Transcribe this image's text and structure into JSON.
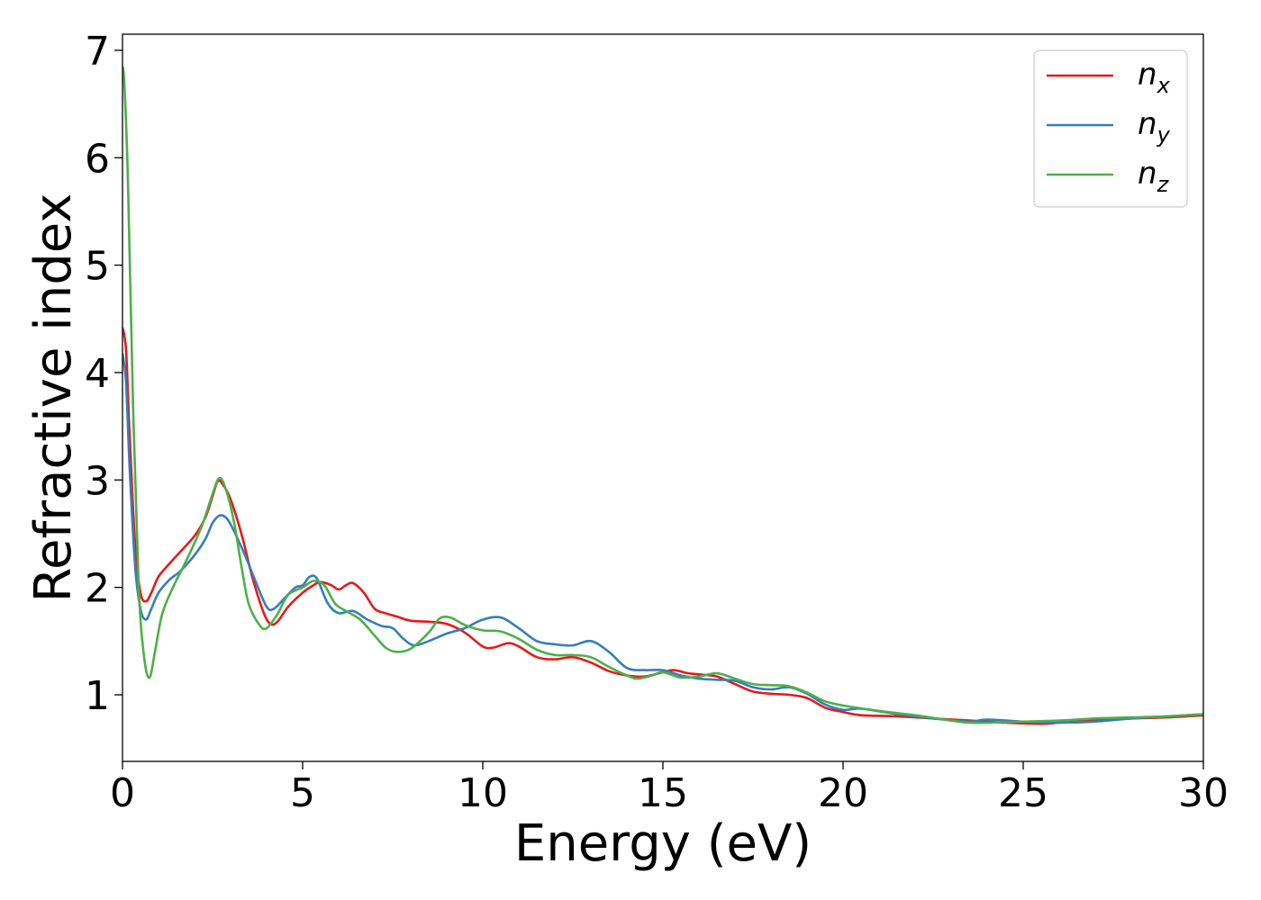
{
  "chart_data": {
    "type": "line",
    "title": "",
    "xlabel": "Energy (eV)",
    "ylabel": "Refractive index",
    "xlim": [
      0,
      30
    ],
    "ylim": [
      0.38,
      7.15
    ],
    "xticks": [
      "0",
      "5",
      "10",
      "15",
      "20",
      "25",
      "30"
    ],
    "yticks": [
      "1",
      "2",
      "3",
      "4",
      "5",
      "6",
      "7"
    ],
    "grid": false,
    "legend_position": "top-right",
    "series": [
      {
        "name": "n_x",
        "name_base": "n",
        "name_sub": "x",
        "color": "#e41a1c",
        "points": [
          [
            0,
            4.42
          ],
          [
            0.1,
            4.2
          ],
          [
            0.2,
            3.4
          ],
          [
            0.35,
            2.4
          ],
          [
            0.5,
            1.95
          ],
          [
            0.65,
            1.87
          ],
          [
            0.8,
            1.95
          ],
          [
            1.0,
            2.1
          ],
          [
            1.3,
            2.22
          ],
          [
            1.6,
            2.33
          ],
          [
            2.0,
            2.48
          ],
          [
            2.3,
            2.65
          ],
          [
            2.5,
            2.85
          ],
          [
            2.65,
            2.99
          ],
          [
            2.8,
            2.95
          ],
          [
            3.0,
            2.82
          ],
          [
            3.3,
            2.5
          ],
          [
            3.6,
            2.1
          ],
          [
            3.9,
            1.78
          ],
          [
            4.1,
            1.66
          ],
          [
            4.3,
            1.68
          ],
          [
            4.6,
            1.82
          ],
          [
            5.0,
            1.95
          ],
          [
            5.3,
            2.02
          ],
          [
            5.5,
            2.05
          ],
          [
            5.8,
            2.02
          ],
          [
            6.0,
            1.98
          ],
          [
            6.2,
            2.02
          ],
          [
            6.4,
            2.04
          ],
          [
            6.7,
            1.95
          ],
          [
            7.0,
            1.8
          ],
          [
            7.3,
            1.76
          ],
          [
            7.6,
            1.73
          ],
          [
            8.0,
            1.69
          ],
          [
            8.5,
            1.68
          ],
          [
            9.0,
            1.66
          ],
          [
            9.5,
            1.58
          ],
          [
            10.0,
            1.45
          ],
          [
            10.3,
            1.44
          ],
          [
            10.7,
            1.48
          ],
          [
            11.0,
            1.45
          ],
          [
            11.5,
            1.35
          ],
          [
            12.0,
            1.33
          ],
          [
            12.5,
            1.35
          ],
          [
            13.0,
            1.3
          ],
          [
            13.5,
            1.22
          ],
          [
            14.0,
            1.18
          ],
          [
            14.5,
            1.17
          ],
          [
            15.0,
            1.21
          ],
          [
            15.3,
            1.23
          ],
          [
            15.7,
            1.2
          ],
          [
            16.0,
            1.19
          ],
          [
            16.5,
            1.17
          ],
          [
            17.0,
            1.1
          ],
          [
            17.5,
            1.03
          ],
          [
            18.0,
            1.01
          ],
          [
            18.5,
            1.0
          ],
          [
            19.0,
            0.97
          ],
          [
            19.5,
            0.88
          ],
          [
            20.0,
            0.84
          ],
          [
            20.5,
            0.81
          ],
          [
            21.5,
            0.8
          ],
          [
            22.5,
            0.78
          ],
          [
            23.5,
            0.76
          ],
          [
            24.5,
            0.74
          ],
          [
            25.5,
            0.73
          ],
          [
            26.0,
            0.74
          ],
          [
            27.0,
            0.76
          ],
          [
            28.0,
            0.78
          ],
          [
            29.0,
            0.79
          ],
          [
            30.0,
            0.81
          ]
        ]
      },
      {
        "name": "n_y",
        "name_base": "n",
        "name_sub": "y",
        "color": "#377eb8",
        "points": [
          [
            0,
            4.18
          ],
          [
            0.1,
            3.9
          ],
          [
            0.2,
            3.1
          ],
          [
            0.35,
            2.2
          ],
          [
            0.5,
            1.8
          ],
          [
            0.65,
            1.7
          ],
          [
            0.8,
            1.8
          ],
          [
            1.0,
            1.95
          ],
          [
            1.3,
            2.07
          ],
          [
            1.6,
            2.15
          ],
          [
            2.0,
            2.3
          ],
          [
            2.3,
            2.45
          ],
          [
            2.5,
            2.6
          ],
          [
            2.7,
            2.67
          ],
          [
            2.9,
            2.64
          ],
          [
            3.1,
            2.52
          ],
          [
            3.4,
            2.3
          ],
          [
            3.7,
            2.05
          ],
          [
            4.0,
            1.82
          ],
          [
            4.2,
            1.8
          ],
          [
            4.5,
            1.9
          ],
          [
            4.8,
            2.0
          ],
          [
            5.0,
            2.02
          ],
          [
            5.2,
            2.1
          ],
          [
            5.4,
            2.08
          ],
          [
            5.7,
            1.85
          ],
          [
            6.0,
            1.76
          ],
          [
            6.4,
            1.78
          ],
          [
            6.8,
            1.7
          ],
          [
            7.2,
            1.64
          ],
          [
            7.5,
            1.62
          ],
          [
            7.8,
            1.52
          ],
          [
            8.1,
            1.46
          ],
          [
            8.5,
            1.5
          ],
          [
            9.0,
            1.57
          ],
          [
            9.5,
            1.62
          ],
          [
            10.0,
            1.7
          ],
          [
            10.5,
            1.72
          ],
          [
            11.0,
            1.62
          ],
          [
            11.5,
            1.5
          ],
          [
            12.0,
            1.47
          ],
          [
            12.5,
            1.46
          ],
          [
            13.0,
            1.5
          ],
          [
            13.5,
            1.4
          ],
          [
            14.0,
            1.25
          ],
          [
            14.5,
            1.23
          ],
          [
            15.0,
            1.23
          ],
          [
            15.5,
            1.18
          ],
          [
            16.0,
            1.15
          ],
          [
            16.5,
            1.14
          ],
          [
            17.0,
            1.13
          ],
          [
            17.5,
            1.07
          ],
          [
            18.0,
            1.05
          ],
          [
            18.5,
            1.07
          ],
          [
            19.0,
            1.01
          ],
          [
            19.5,
            0.91
          ],
          [
            20.0,
            0.86
          ],
          [
            20.5,
            0.87
          ],
          [
            21.5,
            0.82
          ],
          [
            22.5,
            0.78
          ],
          [
            23.5,
            0.75
          ],
          [
            24.0,
            0.77
          ],
          [
            25.0,
            0.75
          ],
          [
            26.0,
            0.74
          ],
          [
            27.0,
            0.75
          ],
          [
            28.0,
            0.78
          ],
          [
            29.0,
            0.8
          ],
          [
            30.0,
            0.82
          ]
        ]
      },
      {
        "name": "n_z",
        "name_base": "n",
        "name_sub": "z",
        "color": "#4daf4a",
        "points": [
          [
            0,
            6.85
          ],
          [
            0.05,
            6.7
          ],
          [
            0.15,
            5.8
          ],
          [
            0.3,
            3.6
          ],
          [
            0.45,
            2.0
          ],
          [
            0.6,
            1.35
          ],
          [
            0.75,
            1.16
          ],
          [
            0.9,
            1.4
          ],
          [
            1.1,
            1.75
          ],
          [
            1.4,
            2.0
          ],
          [
            1.8,
            2.27
          ],
          [
            2.2,
            2.57
          ],
          [
            2.5,
            2.87
          ],
          [
            2.7,
            3.02
          ],
          [
            2.9,
            2.88
          ],
          [
            3.1,
            2.6
          ],
          [
            3.3,
            2.2
          ],
          [
            3.5,
            1.85
          ],
          [
            3.8,
            1.65
          ],
          [
            4.0,
            1.62
          ],
          [
            4.3,
            1.75
          ],
          [
            4.6,
            1.93
          ],
          [
            5.0,
            2.0
          ],
          [
            5.3,
            2.06
          ],
          [
            5.6,
            2.02
          ],
          [
            5.9,
            1.85
          ],
          [
            6.2,
            1.78
          ],
          [
            6.6,
            1.7
          ],
          [
            7.0,
            1.55
          ],
          [
            7.3,
            1.44
          ],
          [
            7.6,
            1.4
          ],
          [
            8.0,
            1.43
          ],
          [
            8.5,
            1.58
          ],
          [
            8.8,
            1.71
          ],
          [
            9.1,
            1.72
          ],
          [
            9.5,
            1.65
          ],
          [
            10.0,
            1.6
          ],
          [
            10.5,
            1.59
          ],
          [
            11.0,
            1.52
          ],
          [
            11.5,
            1.42
          ],
          [
            12.0,
            1.37
          ],
          [
            12.5,
            1.37
          ],
          [
            13.0,
            1.35
          ],
          [
            13.5,
            1.26
          ],
          [
            14.0,
            1.18
          ],
          [
            14.3,
            1.15
          ],
          [
            14.7,
            1.18
          ],
          [
            15.0,
            1.21
          ],
          [
            15.5,
            1.16
          ],
          [
            16.0,
            1.17
          ],
          [
            16.5,
            1.2
          ],
          [
            17.0,
            1.15
          ],
          [
            17.5,
            1.1
          ],
          [
            18.0,
            1.09
          ],
          [
            18.5,
            1.08
          ],
          [
            19.0,
            1.02
          ],
          [
            19.5,
            0.94
          ],
          [
            20.0,
            0.9
          ],
          [
            21.0,
            0.85
          ],
          [
            22.0,
            0.81
          ],
          [
            23.0,
            0.76
          ],
          [
            23.5,
            0.74
          ],
          [
            24.0,
            0.74
          ],
          [
            25.0,
            0.75
          ],
          [
            26.0,
            0.76
          ],
          [
            27.0,
            0.78
          ],
          [
            28.0,
            0.79
          ],
          [
            29.0,
            0.8
          ],
          [
            30.0,
            0.82
          ]
        ]
      }
    ]
  }
}
